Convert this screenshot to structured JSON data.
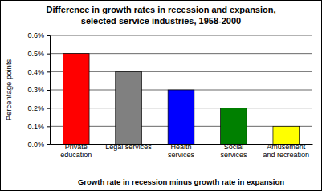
{
  "chart_data": {
    "type": "bar",
    "title": "Difference in growth rates in recession and expansion, selected service industries, 1958-2000",
    "x_label": "Growth rate in recession minus growth rate in expansion",
    "y_label": "Percentage points",
    "categories": [
      "Private education",
      "Legal services",
      "Health services",
      "Social services",
      "Amusement and recreation"
    ],
    "values": [
      0.5,
      0.4,
      0.3,
      0.2,
      0.1
    ],
    "colors": [
      "#ff0000",
      "#808080",
      "#0000ff",
      "#008000",
      "#ffff00"
    ],
    "ylim": [
      0,
      0.6
    ],
    "yticks": [
      {
        "value": 0,
        "label": "0.0%"
      },
      {
        "value": 0.1,
        "label": "0.1%"
      },
      {
        "value": 0.2,
        "label": "0.2%"
      },
      {
        "value": 0.3,
        "label": "0.3%"
      },
      {
        "value": 0.4,
        "label": "0.4%"
      },
      {
        "value": 0.5,
        "label": "0.5%"
      },
      {
        "value": 0.6,
        "label": "0.6%"
      }
    ],
    "grid": true
  }
}
